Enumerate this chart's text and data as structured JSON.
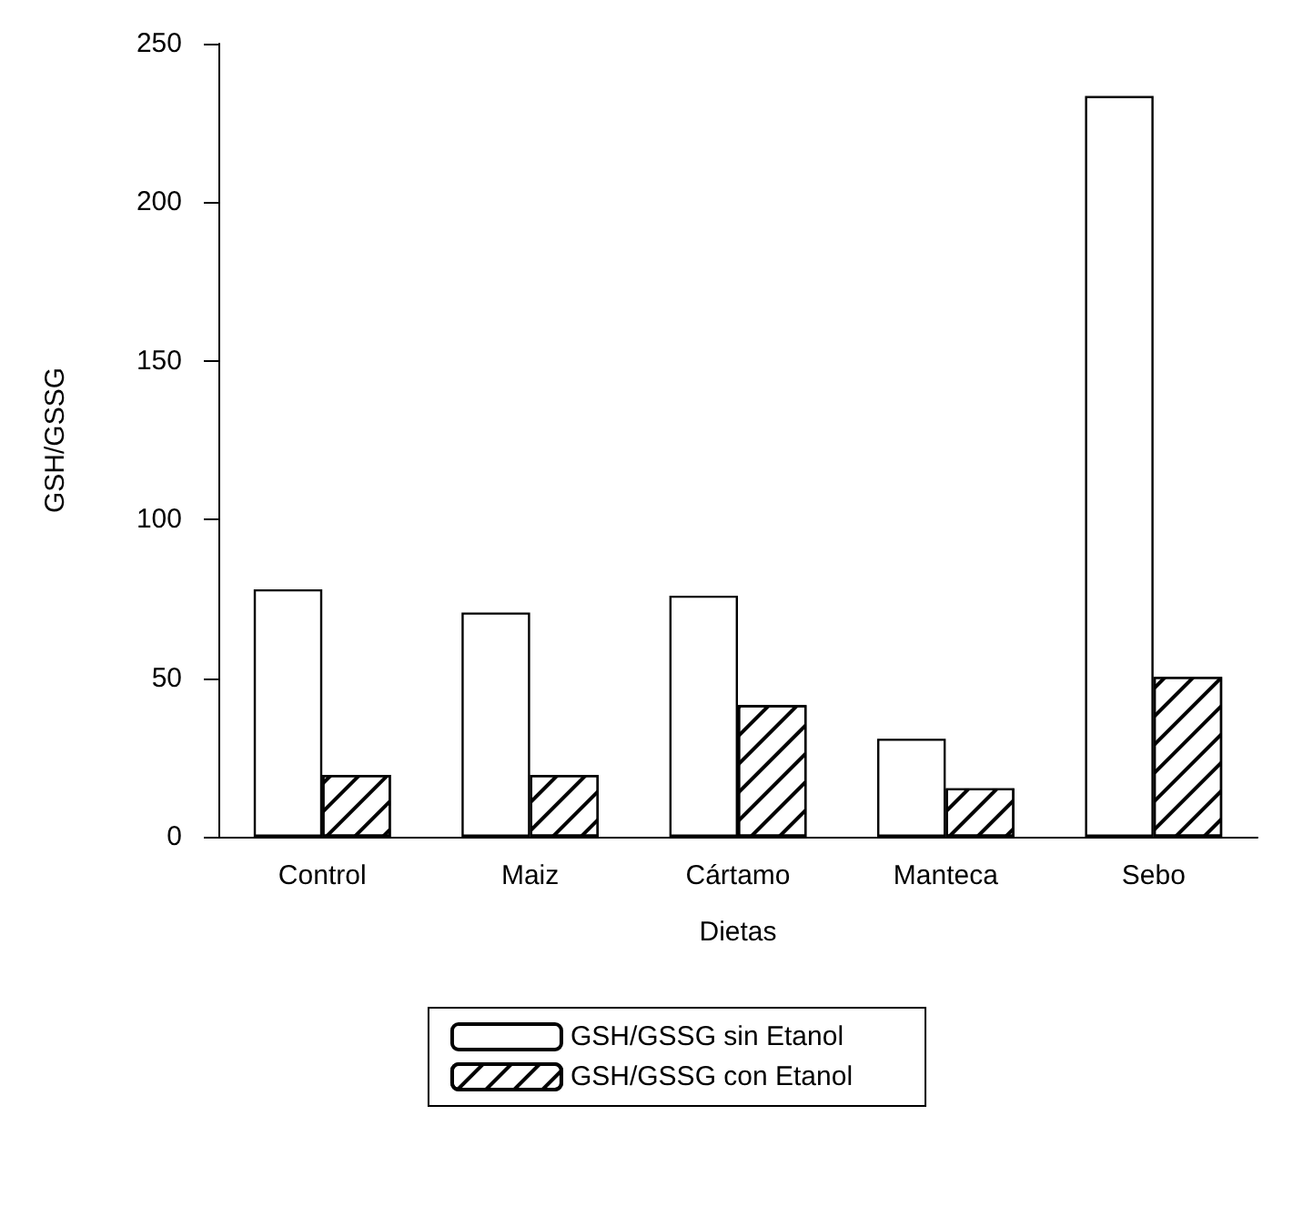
{
  "chart_data": {
    "type": "bar",
    "xlabel": "Dietas",
    "ylabel": "GSH/GSSG",
    "categories": [
      "Control",
      "Maiz",
      "Cártamo",
      "Manteca",
      "Sebo"
    ],
    "series": [
      {
        "name": "GSH/GSSG sin Etanol",
        "color": "#ffffff",
        "values": [
          78,
          70.7,
          76,
          30.9,
          233.5
        ]
      },
      {
        "name": "GSH/GSSG con Etanol",
        "color": "#ffffff",
        "values": [
          19.5,
          19.5,
          41.5,
          15.3,
          50.4
        ]
      }
    ],
    "ylim": [
      0,
      250
    ],
    "yticks": [
      0,
      50,
      100,
      150,
      200,
      250
    ],
    "grid": false,
    "legend": "bottom"
  }
}
